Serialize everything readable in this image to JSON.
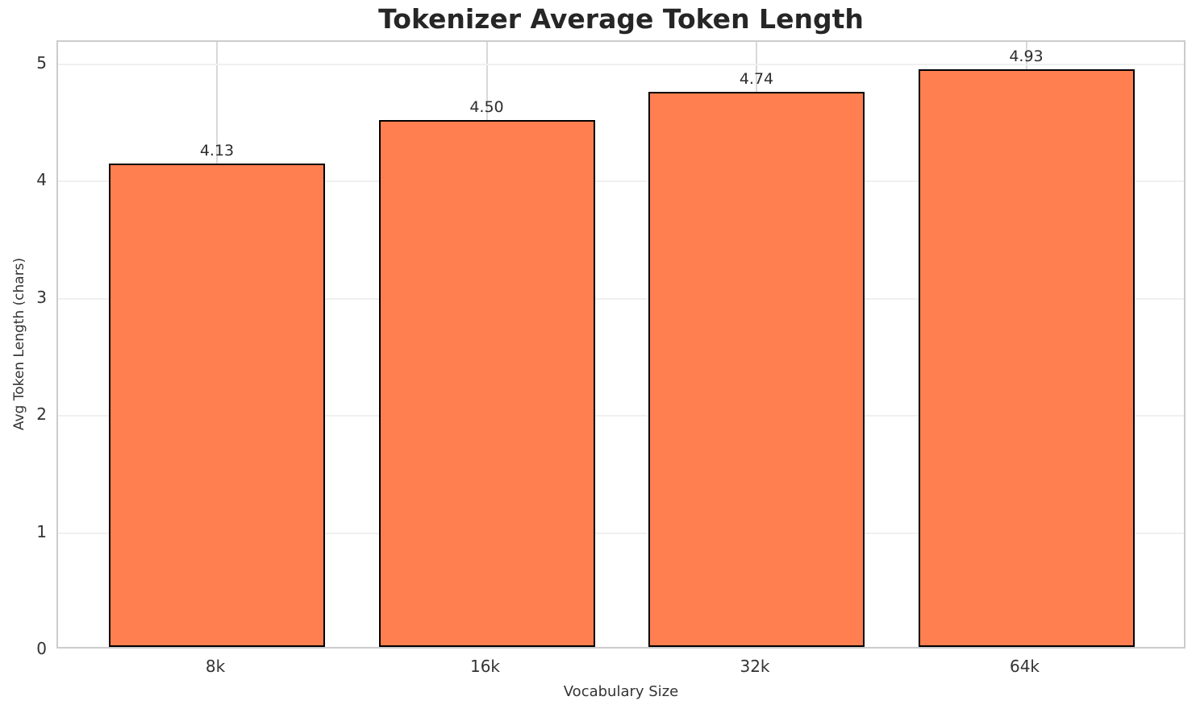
{
  "chart_data": {
    "type": "bar",
    "title": "Tokenizer Average Token Length",
    "categories": [
      "8k",
      "16k",
      "32k",
      "64k"
    ],
    "values": [
      4.13,
      4.5,
      4.74,
      4.93
    ],
    "value_labels": [
      "4.13",
      "4.50",
      "4.74",
      "4.93"
    ],
    "xlabel": "Vocabulary Size",
    "ylabel": "Avg Token Length (chars)",
    "ylim": [
      0,
      5.19
    ],
    "yticks": [
      0,
      1,
      2,
      3,
      4,
      5
    ],
    "grid": true,
    "legend_position": "none",
    "bar_color": "#FF7F50",
    "bar_edge_color": "#000000",
    "background_color": "#FFFFFF",
    "hgrid_color": "#f0f0f0",
    "vgrid_color": "#d9d9d9",
    "tick_label_color": "#333333",
    "title_color": "#262626"
  }
}
